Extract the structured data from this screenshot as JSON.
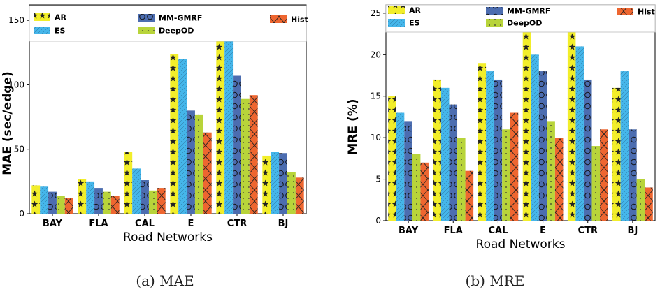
{
  "chart_data": [
    {
      "type": "bar",
      "categories": [
        "BAY",
        "FLA",
        "CAL",
        "E",
        "CTR",
        "BJ"
      ],
      "series": [
        {
          "name": "AR",
          "values": [
            22,
            27,
            48,
            124,
            155,
            45
          ]
        },
        {
          "name": "ES",
          "values": [
            21,
            25,
            35,
            120,
            138,
            48
          ]
        },
        {
          "name": "MM-GMRF",
          "values": [
            17,
            20,
            26,
            80,
            107,
            47
          ]
        },
        {
          "name": "DeepOD",
          "values": [
            14,
            17,
            18,
            77,
            89,
            32
          ]
        },
        {
          "name": "Hist",
          "values": [
            12,
            14,
            20,
            63,
            92,
            28
          ]
        }
      ],
      "title": "",
      "xlabel": "Road Networks",
      "ylabel": "MAE (sec/edge)",
      "ylim": [
        0,
        162
      ],
      "yticks": [
        0,
        50,
        100,
        150
      ],
      "caption": "(a) MAE",
      "grid": false,
      "legend": "top"
    },
    {
      "type": "bar",
      "categories": [
        "BAY",
        "FLA",
        "CAL",
        "E",
        "CTR",
        "BJ"
      ],
      "series": [
        {
          "name": "AR",
          "values": [
            15,
            17,
            19,
            25,
            24,
            16
          ]
        },
        {
          "name": "ES",
          "values": [
            13,
            16,
            18,
            20,
            21,
            18
          ]
        },
        {
          "name": "MM-GMRF",
          "values": [
            12,
            14,
            17,
            18,
            17,
            11
          ]
        },
        {
          "name": "DeepOD",
          "values": [
            8,
            10,
            11,
            12,
            9,
            5
          ]
        },
        {
          "name": "Hist",
          "values": [
            7,
            6,
            13,
            10,
            11,
            4
          ]
        }
      ],
      "title": "",
      "xlabel": "Road Networks",
      "ylabel": "MRE (%)",
      "ylim": [
        0,
        26
      ],
      "yticks": [
        0,
        5,
        10,
        15,
        20,
        25
      ],
      "caption": "(b) MRE",
      "grid": false,
      "legend": "top"
    }
  ],
  "colors": {
    "AR": "#f2ee2a",
    "ES": "#45b6ea",
    "MM-GMRF": "#4c6db0",
    "DeepOD": "#b8d43a",
    "Hist": "#ee6630"
  }
}
